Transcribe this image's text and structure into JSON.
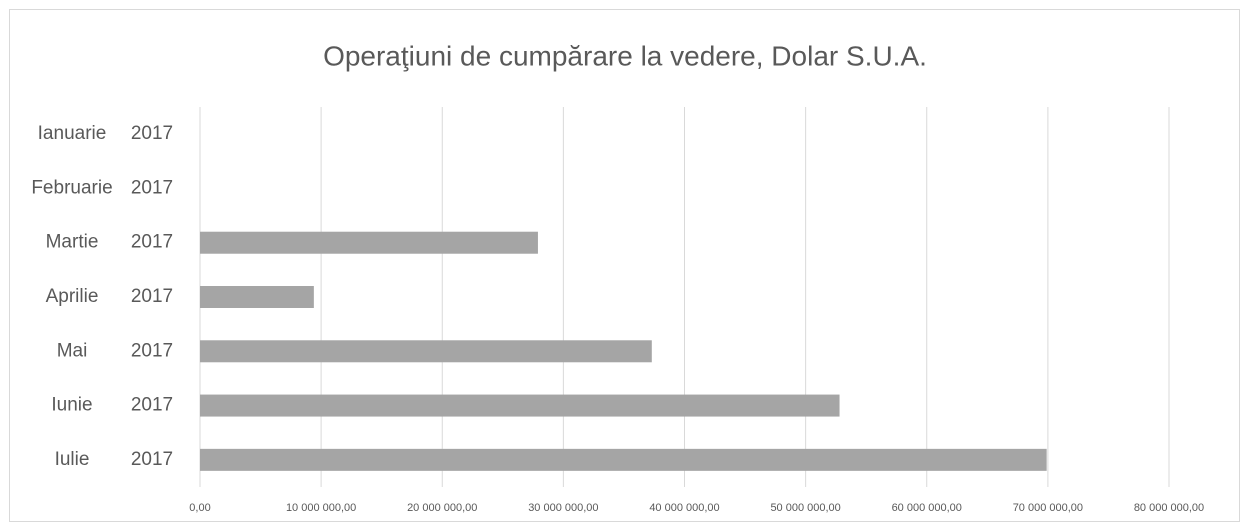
{
  "chart_data": {
    "type": "bar",
    "orientation": "horizontal",
    "title": "Operaţiuni de cumpărare la vedere, Dolar S.U.A.",
    "categories": [
      "Ianuarie",
      "Februarie",
      "Martie",
      "Aprilie",
      "Mai",
      "Iunie",
      "Iulie"
    ],
    "category_group": "2017",
    "values": [
      0,
      0,
      27900000,
      9400000,
      37300000,
      52800000,
      69900000
    ],
    "color": "#a5a5a5",
    "xlim": [
      0,
      80000000
    ],
    "xticks": [
      {
        "value": 0,
        "label": "0,00"
      },
      {
        "value": 10000000,
        "label": "10 000 000,00"
      },
      {
        "value": 20000000,
        "label": "20 000 000,00"
      },
      {
        "value": 30000000,
        "label": "30 000 000,00"
      },
      {
        "value": 40000000,
        "label": "40 000 000,00"
      },
      {
        "value": 50000000,
        "label": "50 000 000,00"
      },
      {
        "value": 60000000,
        "label": "60 000 000,00"
      },
      {
        "value": 70000000,
        "label": "70 000 000,00"
      },
      {
        "value": 80000000,
        "label": "80 000 000,00"
      }
    ],
    "grid": true
  }
}
